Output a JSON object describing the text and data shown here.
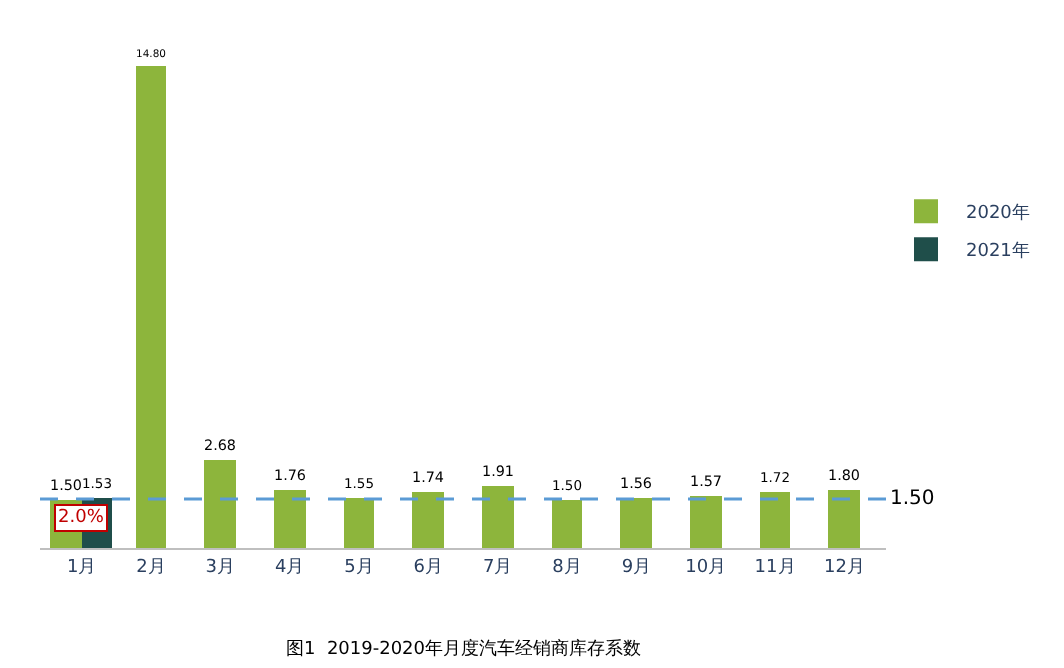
{
  "chart_data": {
    "type": "bar",
    "categories": [
      "1月",
      "2月",
      "3月",
      "4月",
      "5月",
      "6月",
      "7月",
      "8月",
      "9月",
      "10月",
      "11月",
      "12月"
    ],
    "series": [
      {
        "name": "2020年",
        "color": "#8db53c",
        "values": [
          1.5,
          14.8,
          2.68,
          1.76,
          1.55,
          1.74,
          1.91,
          1.5,
          1.56,
          1.57,
          1.72,
          1.8
        ],
        "value_labels": [
          "1.50",
          "14.80",
          "2.68",
          "1.76",
          "1.55",
          "1.74",
          "1.91",
          "1.50",
          "1.56",
          "1.57",
          "1.72",
          "1.80"
        ]
      },
      {
        "name": "2021年",
        "color": "#1f4e4a",
        "values": [
          1.53,
          null,
          null,
          null,
          null,
          null,
          null,
          null,
          null,
          null,
          null,
          null
        ],
        "value_labels": [
          "1.53",
          null,
          null,
          null,
          null,
          null,
          null,
          null,
          null,
          null,
          null,
          null
        ]
      }
    ],
    "tick_labels": "x",
    "legend": "right",
    "ref_lines": [
      {
        "axis": "y",
        "value": 1.5,
        "label": "1.50",
        "color": "#5b9bd5",
        "line_style": "dashed"
      }
    ],
    "annotations": [
      {
        "text": "2.0%",
        "x": "1月",
        "y": 0.9
      },
      "图1  2019-2020年月度汽车经销商库存系数"
    ]
  }
}
